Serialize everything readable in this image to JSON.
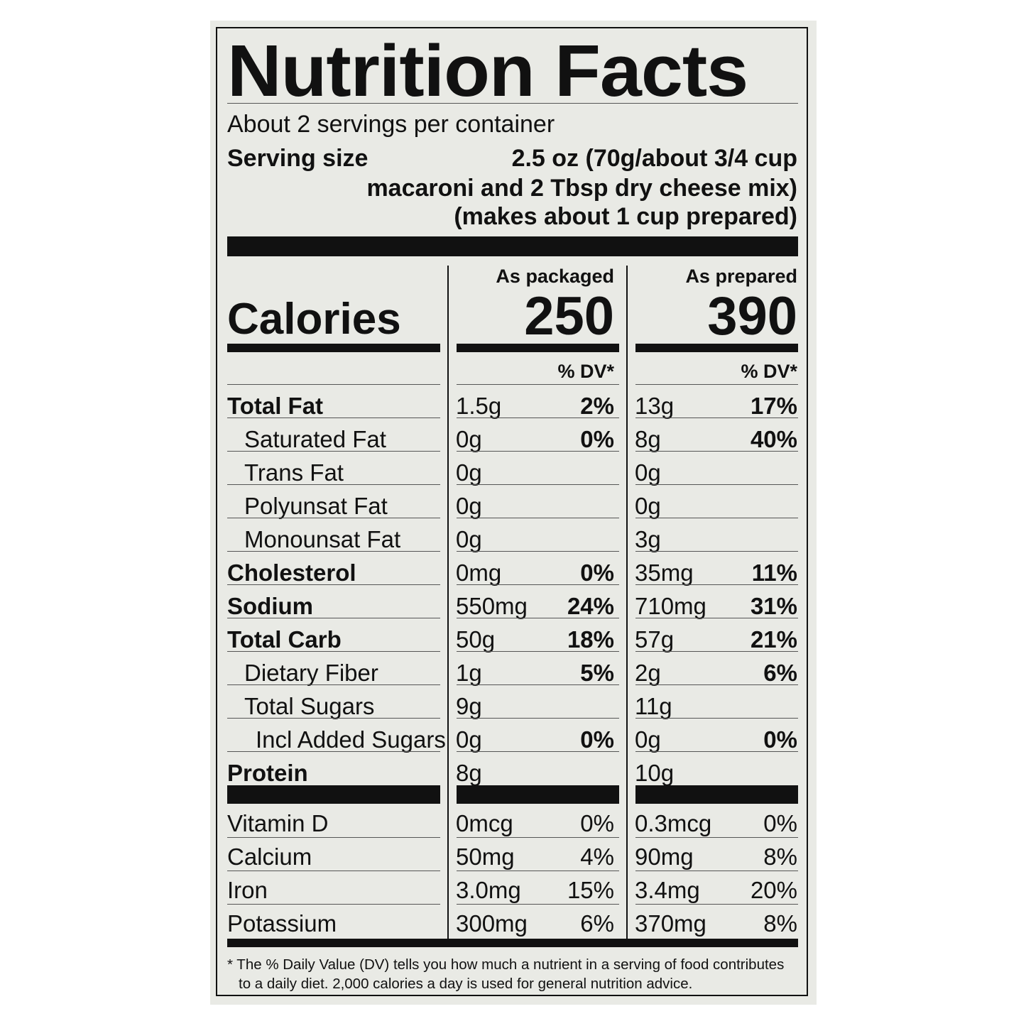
{
  "label": {
    "title": "Nutrition Facts",
    "servings": "About 2 servings per container",
    "serving_size_label": "Serving size",
    "serving_size_line1": "2.5 oz (70g/about 3/4 cup",
    "serving_size_line2": "macaroni and 2 Tbsp dry cheese mix)",
    "serving_size_line3": "(makes about 1 cup prepared)",
    "calories_label": "Calories",
    "columns": [
      {
        "heading": "As packaged",
        "calories": "250",
        "dv_header": "% DV*"
      },
      {
        "heading": "As prepared",
        "calories": "390",
        "dv_header": "% DV*"
      }
    ],
    "nutrients": [
      {
        "name": "Total Fat",
        "bold": true,
        "indent": 0,
        "packaged_amount": "1.5g",
        "packaged_dv": "2%",
        "prepared_amount": "13g",
        "prepared_dv": "17%"
      },
      {
        "name": "Saturated Fat",
        "bold": false,
        "indent": 1,
        "packaged_amount": "0g",
        "packaged_dv": "0%",
        "prepared_amount": "8g",
        "prepared_dv": "40%"
      },
      {
        "name": "Trans Fat",
        "bold": false,
        "indent": 1,
        "packaged_amount": "0g",
        "packaged_dv": "",
        "prepared_amount": "0g",
        "prepared_dv": ""
      },
      {
        "name": "Polyunsat Fat",
        "bold": false,
        "indent": 1,
        "packaged_amount": "0g",
        "packaged_dv": "",
        "prepared_amount": "0g",
        "prepared_dv": ""
      },
      {
        "name": "Monounsat Fat",
        "bold": false,
        "indent": 1,
        "packaged_amount": "0g",
        "packaged_dv": "",
        "prepared_amount": "3g",
        "prepared_dv": ""
      },
      {
        "name": "Cholesterol",
        "bold": true,
        "indent": 0,
        "packaged_amount": "0mg",
        "packaged_dv": "0%",
        "prepared_amount": "35mg",
        "prepared_dv": "11%"
      },
      {
        "name": "Sodium",
        "bold": true,
        "indent": 0,
        "packaged_amount": "550mg",
        "packaged_dv": "24%",
        "prepared_amount": "710mg",
        "prepared_dv": "31%"
      },
      {
        "name": "Total Carb",
        "bold": true,
        "indent": 0,
        "packaged_amount": "50g",
        "packaged_dv": "18%",
        "prepared_amount": "57g",
        "prepared_dv": "21%"
      },
      {
        "name": "Dietary Fiber",
        "bold": false,
        "indent": 1,
        "packaged_amount": "1g",
        "packaged_dv": "5%",
        "prepared_amount": "2g",
        "prepared_dv": "6%"
      },
      {
        "name": "Total Sugars",
        "bold": false,
        "indent": 1,
        "packaged_amount": "9g",
        "packaged_dv": "",
        "prepared_amount": "11g",
        "prepared_dv": ""
      },
      {
        "name": "Incl Added Sugars",
        "bold": false,
        "indent": 2,
        "packaged_amount": "0g",
        "packaged_dv": "0%",
        "prepared_amount": "0g",
        "prepared_dv": "0%"
      },
      {
        "name": "Protein",
        "bold": true,
        "indent": 0,
        "packaged_amount": "8g",
        "packaged_dv": "",
        "prepared_amount": "10g",
        "prepared_dv": ""
      }
    ],
    "vitamins": [
      {
        "name": "Vitamin D",
        "packaged_amount": "0mcg",
        "packaged_dv": "0%",
        "prepared_amount": "0.3mcg",
        "prepared_dv": "0%"
      },
      {
        "name": "Calcium",
        "packaged_amount": "50mg",
        "packaged_dv": "4%",
        "prepared_amount": "90mg",
        "prepared_dv": "8%"
      },
      {
        "name": "Iron",
        "packaged_amount": "3.0mg",
        "packaged_dv": "15%",
        "prepared_amount": "3.4mg",
        "prepared_dv": "20%"
      },
      {
        "name": "Potassium",
        "packaged_amount": "300mg",
        "packaged_dv": "6%",
        "prepared_amount": "370mg",
        "prepared_dv": "8%"
      }
    ],
    "footnote_line1": "* The % Daily Value (DV) tells you how much a nutrient in a serving of food contributes",
    "footnote_line2": "to a daily diet. 2,000 calories a day is used for general nutrition advice."
  },
  "colors": {
    "panel": "#e9eae5",
    "ink": "#111111"
  }
}
